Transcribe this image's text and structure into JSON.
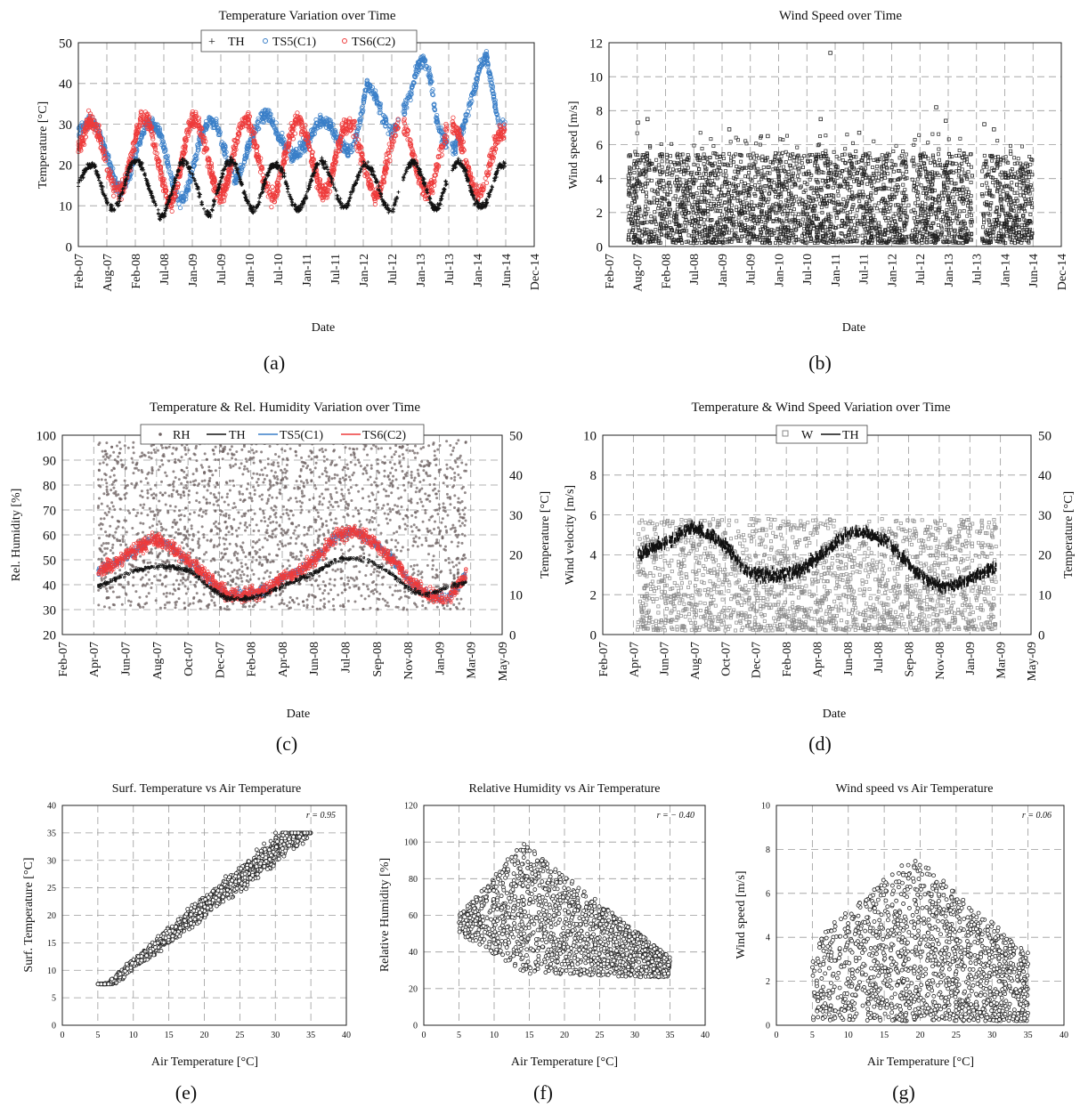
{
  "colors": {
    "th": "#111111",
    "ts5": "#3a7fc8",
    "ts6": "#ee3b3b",
    "rh": "#6e6262",
    "w": "#8a8a8a",
    "scatter": "#222222",
    "grid": "#9a9a9a"
  },
  "chart_data": [
    {
      "id": "a",
      "panel_label": "(a)",
      "type": "scatter",
      "title": "Temperature Variation over Time",
      "xlabel": "Date",
      "ylabel": "Temperature [°C]",
      "x_ticks": [
        "Feb-07",
        "Aug-07",
        "Feb-08",
        "Jul-08",
        "Jan-09",
        "Jul-09",
        "Jan-10",
        "Jul-10",
        "Jan-11",
        "Jul-11",
        "Jan-12",
        "Jul-12",
        "Jan-13",
        "Jul-13",
        "Jan-14",
        "Jun-14",
        "Dec-14"
      ],
      "y_ticks": [
        0,
        10,
        20,
        30,
        40,
        50
      ],
      "ylim": [
        0,
        50
      ],
      "grid": true,
      "legend_position": "top-center",
      "series": [
        {
          "name": "TH",
          "marker": "plus",
          "color": "#111111",
          "monthly_values": [
            15,
            18,
            20,
            20,
            17,
            13,
            10,
            9,
            11,
            15,
            19,
            21,
            21,
            18,
            14,
            11,
            7,
            8,
            12,
            16,
            20,
            21,
            19,
            16,
            12,
            8,
            8,
            12,
            16,
            20,
            21,
            20,
            16,
            12,
            9,
            9,
            13,
            17,
            20,
            20,
            19,
            15,
            11,
            9,
            10,
            13,
            17,
            20,
            21,
            19,
            16,
            12,
            10,
            10,
            14,
            17,
            20,
            20,
            18,
            15,
            11,
            9,
            9,
            13,
            17,
            20,
            21,
            19,
            16,
            12,
            9,
            10,
            14,
            18,
            20,
            21,
            19,
            15,
            11,
            10,
            10,
            13,
            17,
            20
          ]
        },
        {
          "name": "TS5(C1)",
          "marker": "circle",
          "color": "#3a7fc8",
          "monthly_values": [
            28,
            30,
            31,
            29,
            25,
            20,
            15,
            14,
            17,
            22,
            27,
            30,
            30,
            28,
            22,
            16,
            11,
            12,
            17,
            24,
            29,
            31,
            30,
            25,
            20,
            16,
            19,
            24,
            28,
            31,
            33,
            30,
            27,
            25,
            22,
            23,
            25,
            27,
            30,
            31,
            30,
            27,
            25,
            23,
            25,
            32,
            40,
            38,
            34,
            30,
            28,
            30,
            34,
            38,
            44,
            46,
            42,
            32,
            27,
            25,
            24,
            28,
            33,
            38,
            44,
            47,
            38,
            30
          ]
        },
        {
          "name": "TS6(C2)",
          "marker": "circle",
          "color": "#ee3b3b",
          "monthly_values": [
            24,
            27,
            31,
            30,
            27,
            22,
            17,
            14,
            13,
            16,
            21,
            27,
            31,
            32,
            28,
            23,
            17,
            12,
            11,
            15,
            22,
            28,
            31,
            31,
            26,
            21,
            16,
            12,
            13,
            18,
            24,
            29,
            32,
            30,
            25,
            20,
            15,
            12,
            13,
            18,
            24,
            28,
            31,
            30,
            26,
            21,
            16,
            13,
            14,
            19,
            25,
            29,
            30,
            29,
            24,
            20,
            15,
            12,
            14,
            19,
            24,
            29,
            31,
            29,
            24,
            19,
            15,
            13,
            15,
            20,
            25,
            29,
            30,
            28,
            23,
            18,
            14,
            13,
            15,
            20,
            25,
            28
          ]
        }
      ]
    },
    {
      "id": "b",
      "panel_label": "(b)",
      "type": "scatter",
      "title": "Wind Speed over Time",
      "xlabel": "Date",
      "ylabel": "Wind speed [m/s]",
      "x_ticks": [
        "Feb-07",
        "Aug-07",
        "Feb-08",
        "Jul-08",
        "Jan-09",
        "Jul-09",
        "Jan-10",
        "Jul-10",
        "Jan-11",
        "Jul-11",
        "Jan-12",
        "Jul-12",
        "Jan-13",
        "Jul-13",
        "Jan-14",
        "Jun-14",
        "Dec-14"
      ],
      "y_ticks": [
        0,
        2,
        4,
        6,
        8,
        10,
        12
      ],
      "ylim": [
        0,
        12
      ],
      "grid": true,
      "series": [
        {
          "name": "W",
          "marker": "square",
          "color": "#222222",
          "range": [
            0.2,
            5.5
          ],
          "spikes": [
            [
              6,
              7.3
            ],
            [
              8,
              7.5
            ],
            [
              25,
              6.9
            ],
            [
              33,
              6.5
            ],
            [
              44,
              7.5
            ],
            [
              46,
              11.4
            ],
            [
              52,
              6.7
            ],
            [
              68,
              8.2
            ],
            [
              70,
              7.4
            ],
            [
              78,
              7.2
            ],
            [
              80,
              6.9
            ]
          ],
          "gaps": [
            [
              62.3,
              62.8
            ],
            [
              75.5,
              77.5
            ]
          ],
          "start_month": 4,
          "end_month": 88
        }
      ]
    },
    {
      "id": "c",
      "panel_label": "(c)",
      "type": "scatter",
      "title": "Temperature & Rel. Humidity Variation over Time",
      "xlabel": "Date",
      "ylabel": "Rel. Humidity [%]",
      "y2label": "Temperature [°C]",
      "x_ticks": [
        "Feb-07",
        "Apr-07",
        "Jun-07",
        "Aug-07",
        "Oct-07",
        "Dec-07",
        "Feb-08",
        "Apr-08",
        "Jun-08",
        "Jul-08",
        "Sep-08",
        "Nov-08",
        "Jan-09",
        "Mar-09",
        "May-09"
      ],
      "y_ticks": [
        20,
        30,
        40,
        50,
        60,
        70,
        80,
        90,
        100
      ],
      "ylim": [
        20,
        100
      ],
      "y2_ticks": [
        0,
        10,
        20,
        30,
        40,
        50
      ],
      "y2lim": [
        0,
        50
      ],
      "grid": true,
      "legend_position": "top-center",
      "series": [
        {
          "name": "RH",
          "marker": "dot",
          "color": "#6e6262",
          "range": [
            30,
            98
          ]
        },
        {
          "name": "TH",
          "marker": "line",
          "color": "#111111",
          "monthly_values": [
            12,
            14,
            16,
            17,
            17,
            16,
            12,
            9,
            9,
            10,
            12,
            14,
            16,
            19,
            19,
            18,
            15,
            11,
            10,
            12,
            13
          ]
        },
        {
          "name": "TS5(C1)",
          "marker": "line",
          "color": "#3a7fc8",
          "monthly_values": [
            16,
            18,
            21,
            24,
            22,
            18,
            14,
            10,
            10,
            11,
            14,
            16,
            20,
            25,
            26,
            23,
            19,
            13,
            10,
            9,
            15
          ]
        },
        {
          "name": "TS6(C2)",
          "marker": "line",
          "color": "#ee3b3b",
          "monthly_values": [
            16,
            18,
            21,
            24,
            22,
            18,
            14,
            10,
            10,
            11,
            14,
            16,
            20,
            25,
            26,
            23,
            19,
            13,
            10,
            9,
            15
          ]
        }
      ]
    },
    {
      "id": "d",
      "panel_label": "(d)",
      "type": "scatter",
      "title": "Temperature & Wind Speed Variation over Time",
      "xlabel": "Date",
      "ylabel": "Wind velocity [m/s]",
      "y2label": "Temperature [°C]",
      "x_ticks": [
        "Feb-07",
        "Apr-07",
        "Jun-07",
        "Aug-07",
        "Oct-07",
        "Dec-07",
        "Feb-08",
        "Apr-08",
        "Jun-08",
        "Jul-08",
        "Sep-08",
        "Nov-08",
        "Jan-09",
        "Mar-09",
        "May-09"
      ],
      "y_ticks": [
        0,
        2,
        4,
        6,
        8,
        10
      ],
      "ylim": [
        0,
        10
      ],
      "y2_ticks": [
        0,
        10,
        20,
        30,
        40,
        50
      ],
      "y2lim": [
        0,
        50
      ],
      "grid": true,
      "legend_position": "top-center",
      "series": [
        {
          "name": "W",
          "marker": "square",
          "color": "#8a8a8a",
          "range": [
            0.2,
            5.8
          ]
        },
        {
          "name": "TH",
          "marker": "line",
          "color": "#111111",
          "monthly_values": [
            20,
            22,
            24,
            27,
            25,
            22,
            16,
            15,
            15,
            16,
            19,
            23,
            26,
            25,
            23,
            18,
            14,
            12,
            13,
            15,
            17
          ]
        }
      ]
    },
    {
      "id": "e",
      "panel_label": "(e)",
      "type": "scatter",
      "title": "Surf. Temperature vs Air Temperature",
      "xlabel": "Air Temperature [°C]",
      "ylabel": "Surf. Temperature [°C]",
      "x_ticks": [
        0,
        5,
        10,
        15,
        20,
        25,
        30,
        35,
        40
      ],
      "xlim": [
        0,
        40
      ],
      "y_ticks": [
        0,
        5,
        10,
        15,
        20,
        25,
        30,
        35,
        40
      ],
      "ylim": [
        0,
        40
      ],
      "grid": true,
      "annotation": "r = 0.95",
      "series": [
        {
          "name": "",
          "marker": "circle",
          "color": "#222222",
          "fit": {
            "slope": 1.05,
            "intercept": 2.5
          },
          "x_range": [
            5,
            35
          ],
          "spread": 3.2
        }
      ]
    },
    {
      "id": "f",
      "panel_label": "(f)",
      "type": "scatter",
      "title": "Relative Humidity vs Air Temperature",
      "xlabel": "Air Temperature [°C]",
      "ylabel": "Relative Humidity [%]",
      "x_ticks": [
        0,
        5,
        10,
        15,
        20,
        25,
        30,
        35,
        40
      ],
      "xlim": [
        0,
        40
      ],
      "y_ticks": [
        0,
        20,
        40,
        60,
        80,
        100,
        120
      ],
      "ylim": [
        0,
        120
      ],
      "grid": true,
      "annotation": "r = − 0.40",
      "series": [
        {
          "name": "",
          "marker": "circle",
          "color": "#222222",
          "x_range": [
            5,
            35
          ],
          "y_range": [
            25,
            100
          ]
        }
      ]
    },
    {
      "id": "g",
      "panel_label": "(g)",
      "type": "scatter",
      "title": "Wind speed vs Air Temperature",
      "xlabel": "Air Temperature [°C]",
      "ylabel": "Wind speed [m/s]",
      "x_ticks": [
        0,
        5,
        10,
        15,
        20,
        25,
        30,
        35,
        40
      ],
      "xlim": [
        0,
        40
      ],
      "y_ticks": [
        0,
        2,
        4,
        6,
        8,
        10
      ],
      "ylim": [
        0,
        10
      ],
      "grid": true,
      "annotation": "r = 0.06",
      "series": [
        {
          "name": "",
          "marker": "circle",
          "color": "#222222",
          "x_range": [
            5,
            35
          ],
          "y_range": [
            0.2,
            7.6
          ]
        }
      ]
    }
  ]
}
